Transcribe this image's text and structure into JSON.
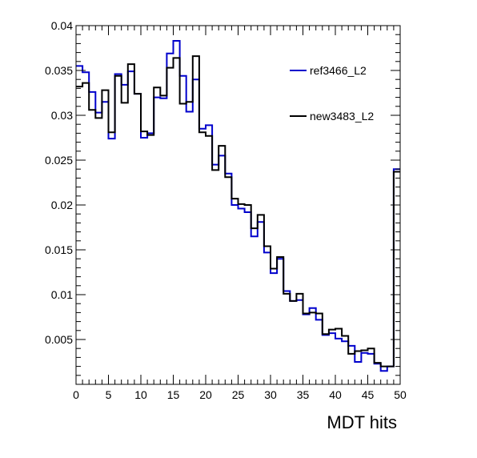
{
  "chart_data": {
    "type": "histogram",
    "xlabel": "MDT hits",
    "ylabel": "",
    "xlim": [
      0,
      50
    ],
    "ylim": [
      0,
      0.04
    ],
    "bin_width": 1,
    "x_ticks": [
      "0",
      "5",
      "10",
      "15",
      "20",
      "25",
      "30",
      "35",
      "40",
      "45",
      "50"
    ],
    "y_ticks": [
      "0.005",
      "0.01",
      "0.015",
      "0.02",
      "0.025",
      "0.03",
      "0.035",
      "0.04"
    ],
    "legend_position": "top-right",
    "series": [
      {
        "name": "ref3466_L2",
        "color": "#0000cc",
        "values": [
          0.0355,
          0.0348,
          0.0326,
          0.0303,
          0.0315,
          0.0274,
          0.0346,
          0.0334,
          0.0349,
          0.0324,
          0.0275,
          0.028,
          0.032,
          0.0319,
          0.0369,
          0.0383,
          0.0344,
          0.0304,
          0.034,
          0.0285,
          0.0289,
          0.0245,
          0.0255,
          0.0235,
          0.02,
          0.0196,
          0.0192,
          0.0165,
          0.0181,
          0.0147,
          0.0124,
          0.014,
          0.0104,
          0.0093,
          0.0094,
          0.0078,
          0.0085,
          0.0072,
          0.0055,
          0.0057,
          0.0051,
          0.0048,
          0.0043,
          0.0025,
          0.0035,
          0.0034,
          0.0023,
          0.0015,
          0.002,
          0.024
        ]
      },
      {
        "name": "new3483_L2",
        "color": "#000000",
        "values": [
          0.0332,
          0.0336,
          0.0306,
          0.0297,
          0.0328,
          0.0281,
          0.0344,
          0.0314,
          0.0357,
          0.0324,
          0.0282,
          0.0278,
          0.0331,
          0.0322,
          0.0353,
          0.0364,
          0.0313,
          0.0315,
          0.0366,
          0.0281,
          0.0277,
          0.0239,
          0.0266,
          0.0231,
          0.0207,
          0.0201,
          0.02,
          0.0174,
          0.0189,
          0.0154,
          0.0129,
          0.0142,
          0.0101,
          0.0093,
          0.0101,
          0.0079,
          0.008,
          0.0079,
          0.0056,
          0.0061,
          0.0062,
          0.0054,
          0.0034,
          0.0037,
          0.0038,
          0.004,
          0.0024,
          0.002,
          0.002,
          0.0237
        ]
      }
    ]
  }
}
